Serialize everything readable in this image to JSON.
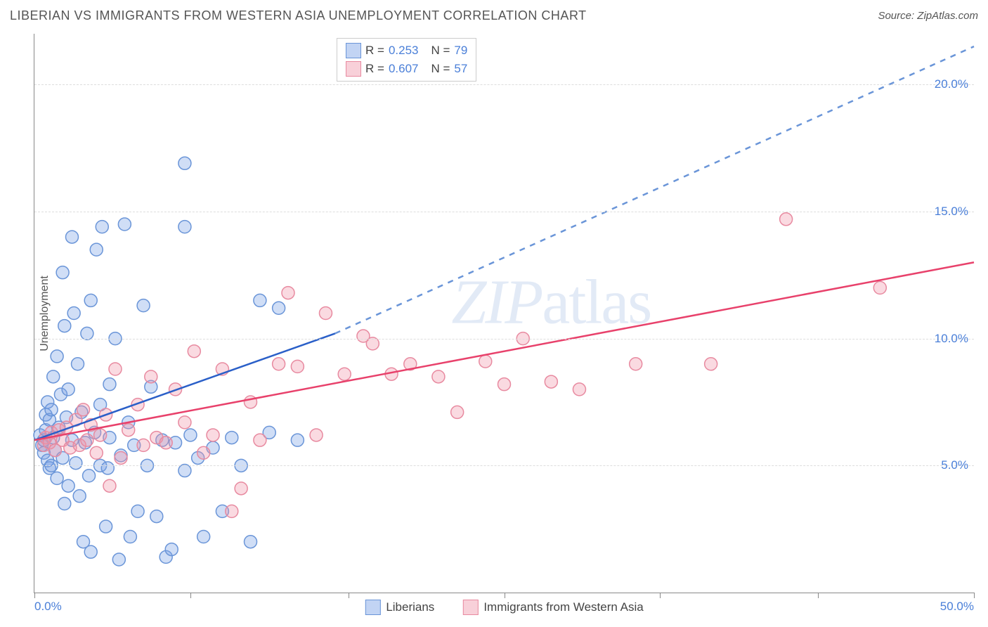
{
  "header": {
    "title": "LIBERIAN VS IMMIGRANTS FROM WESTERN ASIA UNEMPLOYMENT CORRELATION CHART",
    "source": "Source: ZipAtlas.com"
  },
  "ylabel": "Unemployment",
  "watermark": "ZIPatlas",
  "chart": {
    "type": "scatter",
    "xlim": [
      0,
      50
    ],
    "ylim": [
      0,
      22
    ],
    "xtick_positions": [
      0,
      8.3,
      16.7,
      25,
      33.3,
      41.7,
      50
    ],
    "xtick_labels_shown": {
      "start": "0.0%",
      "end": "50.0%"
    },
    "ytick_positions": [
      5,
      10,
      15,
      20
    ],
    "ytick_labels": [
      "5.0%",
      "10.0%",
      "15.0%",
      "20.0%"
    ],
    "grid_color": "#dddddd",
    "axis_color": "#888888",
    "background": "#ffffff",
    "marker_radius": 9,
    "marker_stroke_width": 1.5,
    "series": [
      {
        "name": "Liberians",
        "fill": "rgba(120,160,230,0.35)",
        "stroke": "#6a95d8",
        "R": "0.253",
        "N": "79",
        "trend": {
          "x1": 0,
          "y1": 6.0,
          "x2": 16,
          "y2": 10.2,
          "x2_ext": 50,
          "y2_ext": 21.5,
          "solid_color": "#2a5fc8",
          "dash_color": "#6a95d8",
          "width": 2.5
        },
        "points": [
          [
            0.3,
            6.2
          ],
          [
            0.4,
            5.8
          ],
          [
            0.5,
            6.0
          ],
          [
            0.5,
            5.5
          ],
          [
            0.6,
            6.4
          ],
          [
            0.6,
            7.0
          ],
          [
            0.7,
            5.2
          ],
          [
            0.7,
            7.5
          ],
          [
            0.8,
            6.8
          ],
          [
            0.8,
            4.9
          ],
          [
            0.9,
            7.2
          ],
          [
            0.9,
            5.0
          ],
          [
            1.0,
            6.1
          ],
          [
            1.0,
            8.5
          ],
          [
            1.1,
            5.6
          ],
          [
            1.2,
            9.3
          ],
          [
            1.2,
            4.5
          ],
          [
            1.3,
            6.5
          ],
          [
            1.4,
            7.8
          ],
          [
            1.5,
            12.6
          ],
          [
            1.5,
            5.3
          ],
          [
            1.6,
            10.5
          ],
          [
            1.6,
            3.5
          ],
          [
            1.7,
            6.9
          ],
          [
            1.8,
            8.0
          ],
          [
            1.8,
            4.2
          ],
          [
            2.0,
            14.0
          ],
          [
            2.0,
            6.0
          ],
          [
            2.1,
            11.0
          ],
          [
            2.2,
            5.1
          ],
          [
            2.3,
            9.0
          ],
          [
            2.4,
            3.8
          ],
          [
            2.5,
            7.1
          ],
          [
            2.6,
            2.0
          ],
          [
            2.7,
            5.9
          ],
          [
            2.8,
            10.2
          ],
          [
            2.9,
            4.6
          ],
          [
            3.0,
            11.5
          ],
          [
            3.0,
            1.6
          ],
          [
            3.2,
            6.3
          ],
          [
            3.3,
            13.5
          ],
          [
            3.5,
            7.4
          ],
          [
            3.5,
            5.0
          ],
          [
            3.6,
            14.4
          ],
          [
            3.8,
            2.6
          ],
          [
            3.9,
            4.9
          ],
          [
            4.0,
            8.2
          ],
          [
            4.0,
            6.1
          ],
          [
            4.3,
            10.0
          ],
          [
            4.5,
            1.3
          ],
          [
            4.6,
            5.4
          ],
          [
            4.8,
            14.5
          ],
          [
            5.0,
            6.7
          ],
          [
            5.1,
            2.2
          ],
          [
            5.3,
            5.8
          ],
          [
            5.5,
            3.2
          ],
          [
            5.8,
            11.3
          ],
          [
            6.0,
            5.0
          ],
          [
            6.2,
            8.1
          ],
          [
            6.5,
            3.0
          ],
          [
            6.8,
            6.0
          ],
          [
            7.0,
            1.4
          ],
          [
            7.3,
            1.7
          ],
          [
            7.5,
            5.9
          ],
          [
            8.0,
            4.8
          ],
          [
            8.0,
            16.9
          ],
          [
            8.0,
            14.4
          ],
          [
            8.3,
            6.2
          ],
          [
            8.7,
            5.3
          ],
          [
            9.0,
            2.2
          ],
          [
            9.5,
            5.7
          ],
          [
            10.0,
            3.2
          ],
          [
            10.5,
            6.1
          ],
          [
            11.0,
            5.0
          ],
          [
            11.5,
            2.0
          ],
          [
            12.0,
            11.5
          ],
          [
            12.5,
            6.3
          ],
          [
            13.0,
            11.2
          ],
          [
            14.0,
            6.0
          ]
        ]
      },
      {
        "name": "Immigrants from Western Asia",
        "fill": "rgba(240,150,170,0.35)",
        "stroke": "#e88aa0",
        "R": "0.607",
        "N": "57",
        "trend": {
          "x1": 0,
          "y1": 6.0,
          "x2": 50,
          "y2": 13.0,
          "solid_color": "#e8416b",
          "width": 2.5
        },
        "points": [
          [
            0.5,
            5.8
          ],
          [
            0.6,
            6.1
          ],
          [
            0.8,
            5.9
          ],
          [
            0.9,
            6.3
          ],
          [
            1.1,
            5.6
          ],
          [
            1.3,
            6.4
          ],
          [
            1.5,
            6.0
          ],
          [
            1.7,
            6.5
          ],
          [
            1.9,
            5.7
          ],
          [
            2.2,
            6.8
          ],
          [
            2.4,
            5.8
          ],
          [
            2.6,
            7.2
          ],
          [
            2.8,
            6.0
          ],
          [
            3.0,
            6.6
          ],
          [
            3.3,
            5.5
          ],
          [
            3.5,
            6.2
          ],
          [
            3.8,
            7.0
          ],
          [
            4.0,
            4.2
          ],
          [
            4.3,
            8.8
          ],
          [
            4.6,
            5.3
          ],
          [
            5.0,
            6.4
          ],
          [
            5.5,
            7.4
          ],
          [
            5.8,
            5.8
          ],
          [
            6.2,
            8.5
          ],
          [
            6.5,
            6.1
          ],
          [
            7.0,
            5.9
          ],
          [
            7.5,
            8.0
          ],
          [
            8.0,
            6.7
          ],
          [
            8.5,
            9.5
          ],
          [
            9.0,
            5.5
          ],
          [
            9.5,
            6.2
          ],
          [
            10.0,
            8.8
          ],
          [
            10.5,
            3.2
          ],
          [
            11.0,
            4.1
          ],
          [
            11.5,
            7.5
          ],
          [
            12.0,
            6.0
          ],
          [
            13.0,
            9.0
          ],
          [
            13.5,
            11.8
          ],
          [
            14.0,
            8.9
          ],
          [
            15.0,
            6.2
          ],
          [
            15.5,
            11.0
          ],
          [
            16.5,
            8.6
          ],
          [
            17.5,
            10.1
          ],
          [
            18.0,
            9.8
          ],
          [
            19.0,
            8.6
          ],
          [
            20.0,
            9.0
          ],
          [
            21.5,
            8.5
          ],
          [
            22.5,
            7.1
          ],
          [
            24.0,
            9.1
          ],
          [
            25.0,
            8.2
          ],
          [
            26.0,
            10.0
          ],
          [
            27.5,
            8.3
          ],
          [
            29.0,
            8.0
          ],
          [
            32.0,
            9.0
          ],
          [
            36.0,
            9.0
          ],
          [
            40.0,
            14.7
          ],
          [
            45.0,
            12.0
          ]
        ]
      }
    ]
  },
  "legend_bottom": [
    {
      "swatch_fill": "rgba(120,160,230,0.45)",
      "swatch_stroke": "#6a95d8",
      "label": "Liberians"
    },
    {
      "swatch_fill": "rgba(240,150,170,0.45)",
      "swatch_stroke": "#e88aa0",
      "label": "Immigrants from Western Asia"
    }
  ]
}
